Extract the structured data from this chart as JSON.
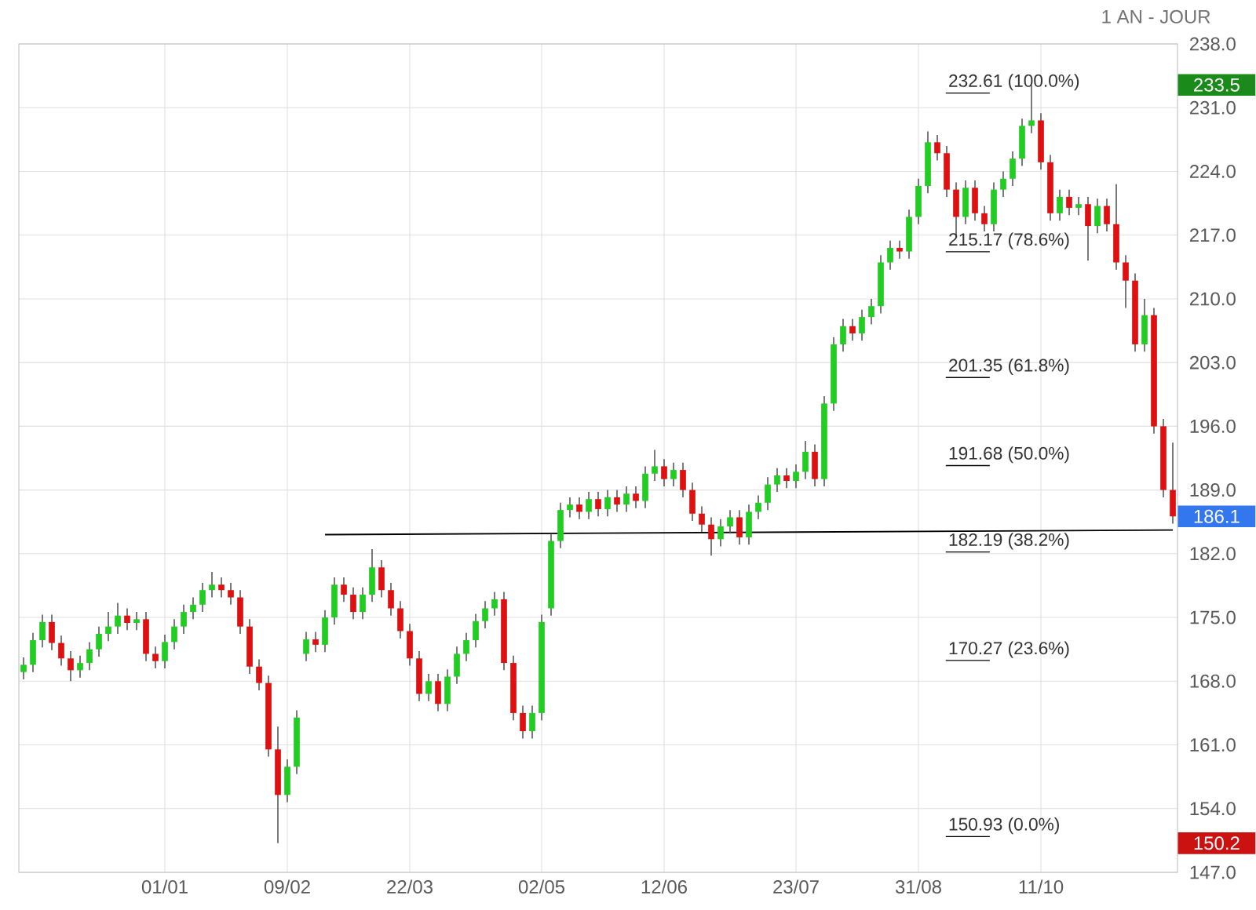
{
  "chart_data": {
    "type": "candlestick",
    "subtitle": "1 AN - JOUR",
    "categories": [
      null,
      null,
      null,
      null,
      null,
      null,
      null,
      null,
      null,
      null,
      null,
      null,
      null,
      null,
      null,
      "01/01",
      null,
      null,
      null,
      null,
      null,
      null,
      null,
      null,
      null,
      null,
      null,
      null,
      "09/02",
      null,
      null,
      null,
      null,
      null,
      null,
      null,
      null,
      null,
      null,
      null,
      null,
      "22/03",
      null,
      null,
      null,
      null,
      null,
      null,
      null,
      null,
      null,
      null,
      null,
      null,
      null,
      "02/05",
      null,
      null,
      null,
      null,
      null,
      null,
      null,
      null,
      null,
      null,
      null,
      null,
      "12/06",
      null,
      null,
      null,
      null,
      null,
      null,
      null,
      null,
      null,
      null,
      null,
      null,
      null,
      "23/07",
      null,
      null,
      null,
      null,
      null,
      null,
      null,
      null,
      null,
      null,
      null,
      null,
      "31/08",
      null,
      null,
      null,
      null,
      null,
      null,
      null,
      null,
      null,
      null,
      null,
      null,
      "11/10",
      null,
      null,
      null,
      null,
      null,
      null,
      null,
      null,
      null,
      null,
      null,
      null,
      null,
      null
    ],
    "ohlc": [
      [
        169.0,
        170.6,
        168.2,
        169.8
      ],
      [
        169.8,
        173.3,
        169.0,
        172.5
      ],
      [
        172.5,
        175.3,
        171.7,
        174.5
      ],
      [
        174.5,
        175.3,
        171.4,
        172.2
      ],
      [
        172.2,
        173.0,
        169.7,
        170.5
      ],
      [
        170.5,
        171.3,
        168.0,
        169.2
      ],
      [
        169.2,
        170.8,
        168.4,
        170.0
      ],
      [
        170.0,
        172.3,
        169.2,
        171.5
      ],
      [
        171.5,
        174.0,
        170.7,
        173.2
      ],
      [
        173.2,
        175.6,
        172.4,
        174.0
      ],
      [
        174.0,
        176.6,
        173.2,
        175.2
      ],
      [
        175.2,
        176.0,
        173.6,
        174.4
      ],
      [
        174.4,
        175.6,
        173.6,
        174.8
      ],
      [
        174.8,
        175.6,
        170.2,
        171.0
      ],
      [
        171.0,
        171.8,
        169.4,
        170.2
      ],
      [
        170.2,
        173.1,
        169.4,
        172.3
      ],
      [
        172.3,
        174.8,
        171.5,
        174.0
      ],
      [
        174.0,
        176.4,
        173.2,
        175.6
      ],
      [
        175.6,
        177.2,
        174.8,
        176.4
      ],
      [
        176.4,
        178.8,
        175.6,
        178.0
      ],
      [
        178.0,
        180.0,
        177.2,
        178.6
      ],
      [
        178.6,
        179.4,
        177.2,
        178.0
      ],
      [
        178.0,
        178.8,
        176.4,
        177.2
      ],
      [
        177.2,
        178.0,
        173.2,
        174.0
      ],
      [
        174.0,
        174.8,
        168.8,
        169.6
      ],
      [
        169.6,
        170.4,
        167.0,
        167.8
      ],
      [
        167.8,
        168.6,
        159.7,
        160.5
      ],
      [
        160.5,
        163.0,
        150.2,
        155.5
      ],
      [
        155.5,
        159.4,
        154.7,
        158.6
      ],
      [
        158.6,
        164.8,
        157.8,
        164.0
      ],
      [
        171.0,
        173.4,
        170.2,
        172.6
      ],
      [
        172.6,
        173.4,
        171.2,
        172.0
      ],
      [
        172.0,
        175.8,
        171.2,
        175.0
      ],
      [
        175.0,
        179.4,
        174.2,
        178.6
      ],
      [
        178.6,
        179.4,
        176.7,
        177.5
      ],
      [
        177.5,
        178.3,
        174.8,
        175.6
      ],
      [
        175.6,
        178.3,
        174.8,
        177.5
      ],
      [
        177.5,
        182.5,
        176.7,
        180.5
      ],
      [
        180.5,
        181.3,
        177.2,
        178.0
      ],
      [
        178.0,
        178.8,
        175.2,
        176.0
      ],
      [
        176.0,
        176.8,
        172.7,
        173.5
      ],
      [
        173.5,
        174.3,
        169.7,
        170.5
      ],
      [
        170.5,
        171.3,
        165.8,
        166.6
      ],
      [
        166.6,
        168.8,
        165.8,
        168.0
      ],
      [
        168.0,
        168.8,
        164.7,
        165.5
      ],
      [
        165.5,
        169.3,
        164.7,
        168.5
      ],
      [
        168.5,
        171.8,
        167.7,
        171.0
      ],
      [
        171.0,
        173.3,
        170.2,
        172.5
      ],
      [
        172.5,
        175.4,
        171.7,
        174.6
      ],
      [
        174.6,
        176.8,
        173.8,
        176.0
      ],
      [
        176.0,
        177.8,
        175.2,
        177.0
      ],
      [
        177.0,
        177.8,
        169.2,
        170.0
      ],
      [
        170.0,
        170.8,
        163.7,
        164.5
      ],
      [
        164.5,
        165.3,
        161.7,
        162.5
      ],
      [
        162.5,
        165.3,
        161.7,
        164.5
      ],
      [
        164.5,
        175.3,
        163.7,
        174.5
      ],
      [
        176.0,
        184.2,
        175.2,
        183.4
      ],
      [
        183.4,
        187.6,
        182.6,
        186.8
      ],
      [
        186.8,
        188.2,
        186.0,
        187.4
      ],
      [
        187.4,
        188.2,
        185.8,
        186.6
      ],
      [
        186.6,
        188.8,
        185.8,
        188.0
      ],
      [
        188.0,
        188.8,
        186.1,
        186.9
      ],
      [
        186.9,
        189.0,
        186.1,
        188.2
      ],
      [
        188.2,
        189.0,
        186.6,
        187.4
      ],
      [
        187.4,
        189.4,
        186.6,
        188.6
      ],
      [
        188.6,
        189.4,
        187.0,
        187.8
      ],
      [
        187.8,
        191.6,
        187.0,
        190.8
      ],
      [
        190.8,
        193.4,
        190.0,
        191.6
      ],
      [
        191.6,
        192.4,
        189.4,
        190.2
      ],
      [
        190.2,
        192.0,
        189.4,
        191.2
      ],
      [
        191.2,
        192.0,
        188.2,
        189.0
      ],
      [
        189.0,
        189.8,
        185.6,
        186.4
      ],
      [
        186.4,
        187.2,
        184.4,
        185.2
      ],
      [
        185.2,
        186.0,
        181.8,
        183.6
      ],
      [
        183.6,
        185.8,
        182.8,
        185.0
      ],
      [
        185.0,
        186.8,
        184.2,
        186.0
      ],
      [
        186.0,
        186.8,
        183.0,
        183.8
      ],
      [
        183.8,
        187.4,
        183.0,
        186.6
      ],
      [
        186.6,
        188.4,
        185.8,
        187.6
      ],
      [
        187.6,
        190.4,
        186.8,
        189.6
      ],
      [
        189.6,
        191.4,
        188.8,
        190.6
      ],
      [
        190.6,
        191.4,
        189.2,
        190.0
      ],
      [
        190.0,
        191.8,
        189.2,
        191.0
      ],
      [
        191.0,
        194.4,
        190.2,
        193.2
      ],
      [
        193.2,
        194.0,
        189.4,
        190.2
      ],
      [
        190.2,
        199.3,
        189.4,
        198.5
      ],
      [
        198.5,
        205.8,
        197.7,
        205.0
      ],
      [
        205.0,
        207.8,
        204.2,
        207.0
      ],
      [
        207.0,
        207.8,
        205.4,
        206.2
      ],
      [
        206.2,
        208.8,
        205.4,
        208.0
      ],
      [
        208.0,
        210.0,
        207.2,
        209.2
      ],
      [
        209.2,
        214.8,
        208.4,
        214.0
      ],
      [
        214.0,
        216.4,
        213.2,
        215.6
      ],
      [
        215.6,
        216.4,
        214.4,
        215.2
      ],
      [
        215.2,
        219.8,
        214.4,
        219.0
      ],
      [
        219.0,
        223.2,
        218.2,
        222.4
      ],
      [
        222.4,
        228.4,
        221.6,
        227.2
      ],
      [
        227.2,
        228.0,
        225.2,
        226.0
      ],
      [
        226.0,
        226.8,
        221.2,
        222.0
      ],
      [
        222.0,
        222.8,
        216.8,
        219.0
      ],
      [
        219.0,
        223.0,
        218.2,
        222.2
      ],
      [
        222.2,
        223.0,
        218.6,
        219.4
      ],
      [
        219.4,
        220.2,
        217.4,
        218.2
      ],
      [
        218.2,
        222.8,
        217.4,
        222.0
      ],
      [
        222.0,
        224.0,
        221.2,
        223.2
      ],
      [
        223.2,
        226.2,
        222.4,
        225.4
      ],
      [
        225.4,
        229.8,
        224.6,
        229.0
      ],
      [
        229.0,
        233.5,
        228.2,
        229.6
      ],
      [
        229.6,
        230.4,
        224.2,
        225.0
      ],
      [
        225.0,
        225.8,
        218.6,
        219.4
      ],
      [
        219.4,
        222.0,
        218.6,
        221.2
      ],
      [
        221.2,
        222.0,
        219.2,
        220.0
      ],
      [
        220.0,
        221.2,
        219.2,
        220.4
      ],
      [
        220.4,
        221.2,
        214.2,
        218.0
      ],
      [
        218.0,
        221.0,
        217.2,
        220.2
      ],
      [
        220.2,
        221.0,
        217.4,
        218.2
      ],
      [
        218.2,
        222.6,
        213.2,
        214.0
      ],
      [
        214.0,
        214.8,
        209.0,
        212.0
      ],
      [
        212.0,
        212.8,
        204.2,
        205.0
      ],
      [
        205.0,
        210.0,
        204.2,
        208.2
      ],
      [
        208.2,
        209.0,
        195.2,
        196.0
      ],
      [
        196.0,
        196.8,
        188.2,
        189.0
      ],
      [
        189.0,
        194.2,
        185.3,
        186.1
      ]
    ],
    "series": [
      {
        "type": "line",
        "color": "#000000",
        "values": [
          null,
          null,
          null,
          null,
          null,
          null,
          null,
          null,
          null,
          null,
          null,
          null,
          null,
          null,
          null,
          null,
          null,
          null,
          null,
          null,
          null,
          null,
          null,
          null,
          null,
          null,
          null,
          null,
          null,
          null,
          null,
          null,
          184.1,
          null,
          null,
          null,
          null,
          null,
          null,
          null,
          null,
          null,
          null,
          null,
          null,
          null,
          null,
          null,
          null,
          null,
          null,
          null,
          null,
          null,
          null,
          null,
          null,
          null,
          null,
          null,
          null,
          null,
          null,
          null,
          null,
          null,
          null,
          null,
          null,
          null,
          null,
          null,
          null,
          null,
          null,
          null,
          null,
          null,
          null,
          null,
          null,
          null,
          null,
          null,
          null,
          null,
          null,
          null,
          null,
          null,
          null,
          null,
          null,
          null,
          null,
          null,
          null,
          null,
          null,
          null,
          null,
          null,
          null,
          null,
          null,
          null,
          null,
          null,
          null,
          null,
          null,
          null,
          null,
          null,
          null,
          null,
          null,
          null,
          null,
          null,
          null,
          null,
          184.6
        ]
      }
    ],
    "ylim": [
      147,
      238
    ],
    "yticks": [
      {
        "value": 147,
        "label": "147.0"
      },
      {
        "value": 154,
        "label": "154.0"
      },
      {
        "value": 161,
        "label": "161.0"
      },
      {
        "value": 168,
        "label": "168.0"
      },
      {
        "value": 175,
        "label": "175.0"
      },
      {
        "value": 182,
        "label": "182.0"
      },
      {
        "value": 189,
        "label": "189.0"
      },
      {
        "value": 196,
        "label": "196.0"
      },
      {
        "value": 203,
        "label": "203.0"
      },
      {
        "value": 210,
        "label": "210.0"
      },
      {
        "value": 217,
        "label": "217.0"
      },
      {
        "value": 224,
        "label": "224.0"
      },
      {
        "value": 231,
        "label": "231.0"
      },
      {
        "value": 238,
        "label": "238.0"
      }
    ],
    "grid": true,
    "ref_lines": [
      {
        "axis": "y",
        "value": 232.61,
        "label": "232.61 (100.0%)"
      },
      {
        "axis": "y",
        "value": 215.17,
        "label": "215.17 (78.6%)"
      },
      {
        "axis": "y",
        "value": 201.35,
        "label": "201.35 (61.8%)"
      },
      {
        "axis": "y",
        "value": 191.68,
        "label": "191.68 (50.0%)"
      },
      {
        "axis": "y",
        "value": 182.19,
        "label": "182.19 (38.2%)"
      },
      {
        "axis": "y",
        "value": 170.27,
        "label": "170.27 (23.6%)"
      },
      {
        "axis": "y",
        "value": 150.93,
        "label": "150.93 (0.0%)"
      }
    ],
    "annotations": [
      "233.5",
      "186.1",
      "150.2"
    ]
  }
}
